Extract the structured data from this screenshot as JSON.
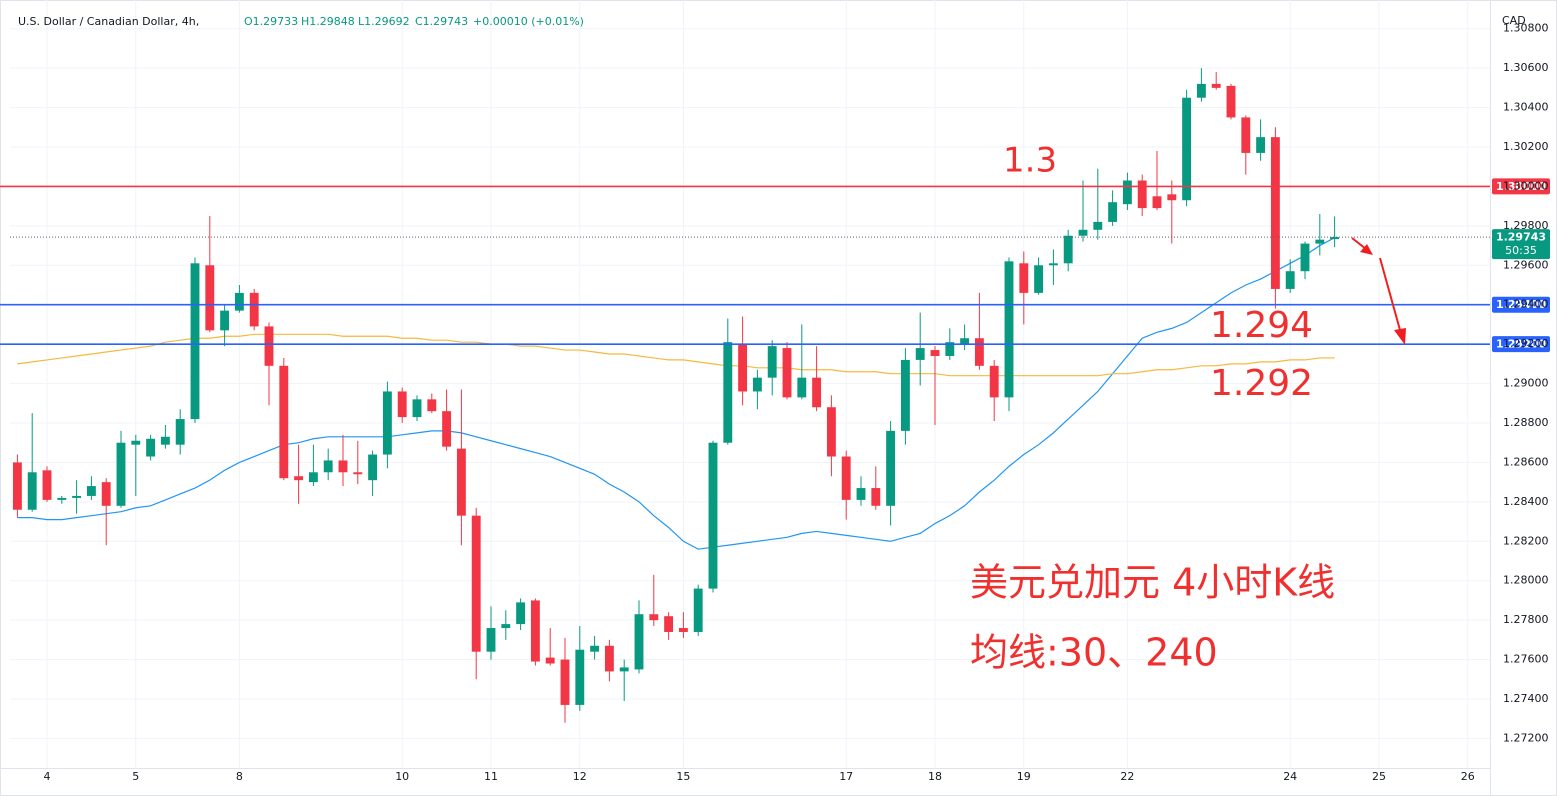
{
  "chart_data": {
    "type": "candlestick",
    "title": "U.S. Dollar / Canadian Dollar, 4h,",
    "ohlc": [
      "O1.29733",
      "H1.29848",
      "L1.29692",
      "C1.29743",
      "+0.00010 (+0.01%)"
    ],
    "currency": "CAD",
    "up_color": "#089981",
    "down_color": "#f23645",
    "categories": [
      null,
      null,
      "4",
      null,
      null,
      null,
      null,
      null,
      "5",
      null,
      null,
      null,
      null,
      null,
      null,
      "8",
      null,
      null,
      null,
      null,
      null,
      null,
      null,
      null,
      null,
      null,
      "10",
      null,
      null,
      null,
      null,
      null,
      "11",
      null,
      null,
      null,
      null,
      null,
      "12",
      null,
      null,
      null,
      null,
      null,
      null,
      "15",
      null,
      null,
      null,
      null,
      null,
      null,
      null,
      null,
      null,
      null,
      "17",
      null,
      null,
      null,
      null,
      null,
      "18",
      null,
      null,
      null,
      null,
      null,
      "19",
      null,
      null,
      null,
      null,
      null,
      null,
      "22",
      null,
      null,
      null,
      null,
      null,
      null,
      null,
      null,
      null,
      null,
      "24",
      null,
      null,
      null,
      null,
      null,
      "25",
      null,
      null,
      null,
      null,
      null,
      "26",
      null
    ],
    "open": [
      1.286,
      1.2836,
      1.2856,
      1.2841,
      1.2842,
      1.2843,
      1.285,
      1.2838,
      1.2869,
      1.2863,
      1.2869,
      1.2869,
      1.2882,
      1.296,
      1.2927,
      1.2937,
      1.2946,
      1.2929,
      1.2909,
      1.2853,
      1.285,
      1.2855,
      1.2861,
      1.2855,
      1.2851,
      1.2864,
      1.2896,
      1.2883,
      1.2892,
      1.2886,
      1.2867,
      1.2833,
      1.2764,
      1.2776,
      1.2778,
      1.279,
      1.2761,
      1.276,
      1.2737,
      1.2764,
      1.2767,
      1.2754,
      1.2755,
      1.2783,
      1.2782,
      1.2776,
      1.2774,
      1.2796,
      1.287,
      1.292,
      1.2896,
      1.2903,
      1.2918,
      1.2893,
      1.2903,
      1.2888,
      1.2863,
      1.2841,
      1.2847,
      1.2838,
      1.2876,
      1.2912,
      1.2917,
      1.2914,
      1.292,
      1.2923,
      1.2909,
      1.2893,
      1.2961,
      1.2946,
      1.296,
      1.2961,
      1.2975,
      1.2978,
      1.2982,
      1.2991,
      1.3003,
      1.2995,
      1.2996,
      1.2993,
      1.3045,
      1.3052,
      1.3051,
      1.3035,
      1.3017,
      1.3025,
      1.2948,
      1.2957,
      1.2971,
      1.29733,
      null,
      null,
      null,
      null,
      null,
      null,
      null,
      null,
      null,
      null
    ],
    "high": [
      1.2864,
      1.2885,
      1.2858,
      1.2843,
      1.2851,
      1.2853,
      1.2852,
      1.2876,
      1.2874,
      1.2874,
      1.2879,
      1.2887,
      1.2964,
      1.2985,
      1.294,
      1.295,
      1.2948,
      1.2931,
      1.2913,
      1.2869,
      1.2869,
      1.2867,
      1.2874,
      1.2871,
      1.2866,
      1.2901,
      1.2898,
      1.2894,
      1.2895,
      1.2897,
      1.2897,
      1.2837,
      1.2787,
      1.2785,
      1.2791,
      1.2791,
      1.2776,
      1.2771,
      1.2777,
      1.2772,
      1.277,
      1.276,
      1.279,
      1.2803,
      1.2784,
      1.2784,
      1.2798,
      1.2871,
      1.2933,
      1.2934,
      1.2907,
      1.2922,
      1.2921,
      1.293,
      1.2919,
      1.2894,
      1.2866,
      1.2853,
      1.2858,
      1.2881,
      1.2918,
      1.2936,
      1.2919,
      1.2928,
      1.293,
      1.2946,
      1.2912,
      1.2964,
      1.2967,
      1.2964,
      1.2968,
      1.2978,
      1.3003,
      1.3009,
      1.2998,
      1.3007,
      1.3006,
      1.3018,
      1.3003,
      1.3049,
      1.306,
      1.3058,
      1.3052,
      1.3036,
      1.3034,
      1.303,
      1.2963,
      1.2972,
      1.2986,
      1.29848,
      null,
      null,
      null,
      null,
      null,
      null,
      null,
      null,
      null,
      null
    ],
    "low": [
      1.2832,
      1.2835,
      1.284,
      1.2839,
      1.2834,
      1.2841,
      1.2818,
      1.2837,
      1.2843,
      1.2861,
      1.2867,
      1.2864,
      1.288,
      1.2926,
      1.2919,
      1.2936,
      1.2927,
      1.2889,
      1.2851,
      1.2839,
      1.2848,
      1.2851,
      1.2848,
      1.2849,
      1.2843,
      1.2857,
      1.288,
      1.2881,
      1.2885,
      1.2866,
      1.2818,
      1.275,
      1.276,
      1.277,
      1.2775,
      1.2757,
      1.2757,
      1.2728,
      1.2734,
      1.276,
      1.2749,
      1.2739,
      1.2753,
      1.2777,
      1.277,
      1.2771,
      1.2772,
      1.2794,
      1.2869,
      1.2889,
      1.2887,
      1.2894,
      1.2892,
      1.2892,
      1.2886,
      1.2853,
      1.2831,
      1.2838,
      1.2836,
      1.2828,
      1.2869,
      1.2899,
      1.2879,
      1.2912,
      1.2917,
      1.2907,
      1.2881,
      1.2886,
      1.293,
      1.2945,
      1.295,
      1.2957,
      1.2972,
      1.2973,
      1.298,
      1.2988,
      1.2985,
      1.2988,
      1.2971,
      1.299,
      1.3043,
      1.3049,
      1.3034,
      1.3006,
      1.3013,
      1.2938,
      1.2946,
      1.2953,
      1.2965,
      1.29692,
      null,
      null,
      null,
      null,
      null,
      null,
      null,
      null,
      null,
      null
    ],
    "close": [
      1.2836,
      1.2855,
      1.2841,
      1.2842,
      1.2843,
      1.2848,
      1.2838,
      1.287,
      1.2871,
      1.2872,
      1.2873,
      1.2882,
      1.2961,
      1.2927,
      1.2937,
      1.2946,
      1.2929,
      1.2909,
      1.2852,
      1.2851,
      1.2855,
      1.2861,
      1.2855,
      1.2854,
      1.2864,
      1.2896,
      1.2883,
      1.2892,
      1.2886,
      1.2868,
      1.2833,
      1.2764,
      1.2776,
      1.2778,
      1.2789,
      1.2759,
      1.2758,
      1.2737,
      1.2765,
      1.2767,
      1.2754,
      1.2756,
      1.2783,
      1.278,
      1.2774,
      1.2774,
      1.2796,
      1.287,
      1.2921,
      1.2896,
      1.2903,
      1.2919,
      1.2893,
      1.2903,
      1.2888,
      1.2863,
      1.2841,
      1.2847,
      1.2838,
      1.2876,
      1.2912,
      1.2918,
      1.2914,
      1.2921,
      1.2923,
      1.2909,
      1.2893,
      1.2962,
      1.2946,
      1.296,
      1.2961,
      1.2975,
      1.2978,
      1.2982,
      1.2992,
      1.3003,
      1.2989,
      1.2989,
      1.2993,
      1.3045,
      1.3052,
      1.305,
      1.3035,
      1.3017,
      1.3025,
      1.2948,
      1.2957,
      1.2971,
      1.2973,
      1.29743,
      null,
      null,
      null,
      null,
      null,
      null,
      null,
      null,
      null,
      null
    ],
    "moving_averages": [
      {
        "color": "#2196f3",
        "values": [
          1.2832,
          1.2832,
          1.2831,
          1.2831,
          1.2832,
          1.2833,
          1.2834,
          1.2835,
          1.2837,
          1.2838,
          1.2841,
          1.2844,
          1.2847,
          1.2851,
          1.2856,
          1.286,
          1.2863,
          1.2866,
          1.2869,
          1.287,
          1.2872,
          1.2873,
          1.2873,
          1.2873,
          1.2873,
          1.2873,
          1.2874,
          1.2875,
          1.2876,
          1.2876,
          1.2875,
          1.2873,
          1.2871,
          1.2869,
          1.2867,
          1.2865,
          1.2863,
          1.286,
          1.2857,
          1.2854,
          1.2849,
          1.2845,
          1.284,
          1.2833,
          1.2827,
          1.282,
          1.2816,
          1.2817,
          1.2818,
          1.2819,
          1.282,
          1.2821,
          1.2822,
          1.2824,
          1.2825,
          1.2824,
          1.2823,
          1.2822,
          1.2821,
          1.282,
          1.2822,
          1.2824,
          1.2829,
          1.2833,
          1.2838,
          1.2845,
          1.2851,
          1.2858,
          1.2864,
          1.2869,
          1.2875,
          1.2882,
          1.2889,
          1.2896,
          1.2905,
          1.2914,
          1.2923,
          1.2926,
          1.2928,
          1.2931,
          1.2936,
          1.2941,
          1.2946,
          1.295,
          1.2953,
          1.2957,
          1.2961,
          1.2965,
          1.297,
          1.2974,
          null,
          null,
          null,
          null,
          null,
          null,
          null,
          null,
          null,
          null
        ]
      },
      {
        "color": "#f5b93c",
        "values": [
          1.291,
          1.2911,
          1.2912,
          1.2913,
          1.2914,
          1.2915,
          1.2916,
          1.2917,
          1.2918,
          1.2919,
          1.2921,
          1.2922,
          1.2923,
          1.2923,
          1.2924,
          1.2924,
          1.2925,
          1.2925,
          1.2925,
          1.2925,
          1.2925,
          1.2925,
          1.2924,
          1.2924,
          1.2924,
          1.2924,
          1.2923,
          1.2923,
          1.2922,
          1.2922,
          1.2921,
          1.2921,
          1.292,
          1.292,
          1.2919,
          1.2919,
          1.2918,
          1.2917,
          1.2917,
          1.2916,
          1.2915,
          1.2915,
          1.2914,
          1.2913,
          1.2912,
          1.2912,
          1.2911,
          1.291,
          1.2909,
          1.2909,
          1.2908,
          1.2908,
          1.2908,
          1.2907,
          1.2907,
          1.2907,
          1.2906,
          1.2906,
          1.2906,
          1.2905,
          1.2905,
          1.2905,
          1.2905,
          1.2904,
          1.2904,
          1.2904,
          1.2904,
          1.2904,
          1.2904,
          1.2904,
          1.2904,
          1.2904,
          1.2904,
          1.2904,
          1.2905,
          1.2905,
          1.2906,
          1.2907,
          1.2907,
          1.2908,
          1.2909,
          1.2909,
          1.291,
          1.291,
          1.2911,
          1.2911,
          1.2912,
          1.2912,
          1.2913,
          1.2913,
          null,
          null,
          null,
          null,
          null,
          null,
          null,
          null,
          null,
          null
        ]
      }
    ],
    "levels": [
      {
        "value": 1.3,
        "label": "1.30000",
        "color": "#f23645"
      },
      {
        "value": 1.294,
        "label": "1.29400",
        "color": "#2962ff"
      },
      {
        "value": 1.292,
        "label": "1.29200",
        "color": "#2962ff"
      }
    ],
    "last_price": {
      "value": 1.29743,
      "label": "1.29743",
      "countdown": "50:35"
    },
    "annotations": [
      "1.3",
      "1.294",
      "1.292",
      "美元兑加元 4小时K线",
      "均线:30、240"
    ],
    "annotation_color": "#f0302e",
    "ylim": [
      1.2705,
      1.309
    ],
    "yticks": [
      {
        "value": 1.272,
        "label": "1.27200"
      },
      {
        "value": 1.274,
        "label": "1.27400"
      },
      {
        "value": 1.276,
        "label": "1.27600"
      },
      {
        "value": 1.278,
        "label": "1.27800"
      },
      {
        "value": 1.28,
        "label": "1.28000"
      },
      {
        "value": 1.282,
        "label": "1.28200"
      },
      {
        "value": 1.284,
        "label": "1.28400"
      },
      {
        "value": 1.286,
        "label": "1.28600"
      },
      {
        "value": 1.288,
        "label": "1.28800"
      },
      {
        "value": 1.29,
        "label": "1.29000"
      },
      {
        "value": 1.292,
        "label": "1.29200"
      },
      {
        "value": 1.294,
        "label": "1.29400"
      },
      {
        "value": 1.296,
        "label": "1.29600"
      },
      {
        "value": 1.298,
        "label": "1.29800"
      },
      {
        "value": 1.3,
        "label": "1.30000"
      },
      {
        "value": 1.302,
        "label": "1.30200"
      },
      {
        "value": 1.304,
        "label": "1.30400"
      },
      {
        "value": 1.306,
        "label": "1.30600"
      },
      {
        "value": 1.308,
        "label": "1.30800"
      }
    ],
    "grid": true
  }
}
